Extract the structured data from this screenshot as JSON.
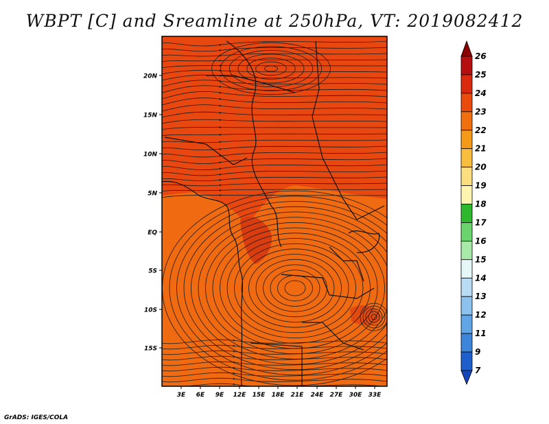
{
  "title": "WBPT [C] and Sreamline at 250hPa, VT: 2019082412",
  "credit": "GrADS: IGES/COLA",
  "map": {
    "lat_labels": [
      "20N",
      "15N",
      "10N",
      "5N",
      "EQ",
      "5S",
      "10S",
      "15S"
    ],
    "lon_labels": [
      "3E",
      "6E",
      "9E",
      "12E",
      "15E",
      "18E",
      "21E",
      "24E",
      "27E",
      "30E",
      "33E"
    ],
    "field_colors": {
      "warm": "#e8480f",
      "mid": "#ef6a10",
      "hot": "#d93d0f"
    },
    "line_color": "#1a1a1a"
  },
  "colorbar": {
    "labels": [
      "26",
      "25",
      "24",
      "23",
      "22",
      "21",
      "20",
      "19",
      "18",
      "17",
      "16",
      "15",
      "14",
      "13",
      "12",
      "11",
      "9",
      "7"
    ],
    "colors": [
      "#8b0000",
      "#b50e0e",
      "#d92a0e",
      "#ea4a0c",
      "#f07010",
      "#f59a18",
      "#f8bd3e",
      "#fbde80",
      "#fff4b0",
      "#2eb82e",
      "#6cd46c",
      "#a8e8a8",
      "#e6f7f7",
      "#b9dcf4",
      "#8cc2ee",
      "#60a6e6",
      "#3e86dc",
      "#1f5fcc",
      "#1446b8"
    ]
  }
}
